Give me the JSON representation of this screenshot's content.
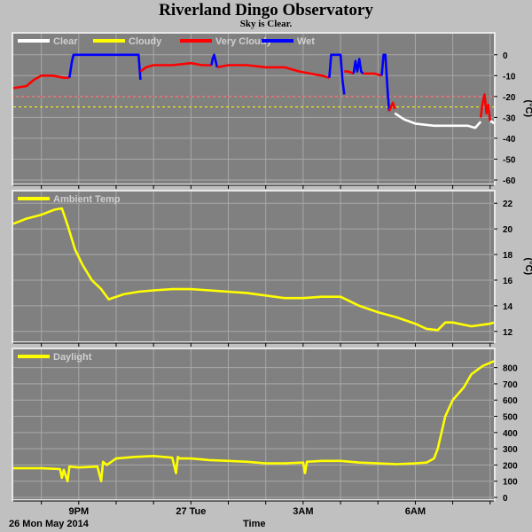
{
  "title": "Riverland Dingo Observatory",
  "subtitle": "Sky is Clear.",
  "footer": {
    "date": "26 Mon May 2014",
    "xlabel": "Time"
  },
  "colors": {
    "panel_bg": "#808080",
    "grid": "#a8a8a8",
    "axis_text": "#000000",
    "clear": "#ffffff",
    "cloudy": "#ffff00",
    "very_cloudy": "#ff0000",
    "wet": "#0000ff",
    "ambient": "#ffff00",
    "daylight": "#ffff00"
  },
  "chart_data": [
    {
      "type": "line",
      "title": "",
      "ylabel": "(°C)",
      "ylim": [
        -60,
        5
      ],
      "yticks": [
        0,
        -10,
        -20,
        -30,
        -40,
        -50,
        -60
      ],
      "x_tick_labels": [
        "9PM",
        "27 Tue",
        "3AM",
        "6AM"
      ],
      "x_tick_hours": [
        21,
        24,
        27,
        30
      ],
      "xlim_hours": [
        19.25,
        32.1
      ],
      "legend": [
        "Clear",
        "Cloudy",
        "Very Cloudy",
        "Wet"
      ],
      "thresholds": [
        {
          "value": -20,
          "color": "red"
        },
        {
          "value": -25,
          "color": "yellow"
        }
      ],
      "series": [
        {
          "name": "Very Cloudy",
          "color": "#ff0000",
          "x": [
            19.25,
            19.6,
            19.8,
            20.0,
            20.3,
            20.6,
            20.75
          ],
          "y": [
            -16,
            -15,
            -12,
            -10,
            -10,
            -11,
            -11
          ]
        },
        {
          "name": "Wet",
          "color": "#0000ff",
          "x": [
            20.75,
            20.82,
            20.86,
            21.5,
            22.0,
            22.5,
            22.6,
            22.65
          ],
          "y": [
            -11,
            -3,
            0,
            0,
            0,
            0,
            0,
            -12
          ]
        },
        {
          "name": "Very Cloudy",
          "color": "#ff0000",
          "x": [
            22.65,
            22.8,
            23.0,
            23.5,
            24.0,
            24.3,
            24.55
          ],
          "y": [
            -8,
            -6,
            -5,
            -5,
            -4,
            -5,
            -5
          ]
        },
        {
          "name": "Wet",
          "color": "#0000ff",
          "x": [
            24.55,
            24.58,
            24.62,
            24.66,
            24.7
          ],
          "y": [
            -5,
            -2,
            0,
            -3,
            -6
          ]
        },
        {
          "name": "Very Cloudy",
          "color": "#ff0000",
          "x": [
            24.7,
            25.0,
            25.5,
            26.0,
            26.5,
            26.9,
            27.2,
            27.5,
            27.7
          ],
          "y": [
            -6,
            -5,
            -5,
            -6,
            -6,
            -8,
            -9,
            -10,
            -11
          ]
        },
        {
          "name": "Wet",
          "color": "#0000ff",
          "x": [
            27.7,
            27.75,
            27.78,
            28.0,
            28.05,
            28.1
          ],
          "y": [
            -11,
            0,
            0,
            0,
            -12,
            -19
          ]
        },
        {
          "name": "Very Cloudy",
          "color": "#ff0000",
          "x": [
            28.1,
            28.2,
            28.35
          ],
          "y": [
            -8,
            -8,
            -9
          ]
        },
        {
          "name": "Wet",
          "color": "#0000ff",
          "x": [
            28.35,
            28.4,
            28.45,
            28.5,
            28.55,
            28.6
          ],
          "y": [
            -9,
            -3,
            -8,
            -2,
            -8,
            -9
          ]
        },
        {
          "name": "Very Cloudy",
          "color": "#ff0000",
          "x": [
            28.6,
            28.9,
            29.1
          ],
          "y": [
            -9,
            -9,
            -10
          ]
        },
        {
          "name": "Wet",
          "color": "#0000ff",
          "x": [
            29.1,
            29.15,
            29.2,
            29.25,
            29.3
          ],
          "y": [
            -10,
            0,
            0,
            -15,
            -27
          ]
        },
        {
          "name": "Very Cloudy",
          "color": "#ff0000",
          "x": [
            29.3,
            29.4,
            29.45
          ],
          "y": [
            -27,
            -23,
            -26
          ]
        },
        {
          "name": "Clear",
          "color": "#ffffff",
          "x": [
            29.45,
            29.7,
            30.0,
            30.5,
            31.0,
            31.4,
            31.6,
            31.75
          ],
          "y": [
            -28,
            -31,
            -33,
            -34,
            -34,
            -34,
            -35,
            -32
          ]
        },
        {
          "name": "Very Cloudy",
          "color": "#ff0000",
          "x": [
            31.75,
            31.8,
            31.85,
            31.9,
            31.95,
            32.0
          ],
          "y": [
            -30,
            -23,
            -19,
            -28,
            -24,
            -32
          ]
        },
        {
          "name": "Clear",
          "color": "#ffffff",
          "x": [
            32.0,
            32.05,
            32.1
          ],
          "y": [
            -32,
            -32,
            -33
          ]
        }
      ]
    },
    {
      "type": "line",
      "title": "",
      "ylabel": "(°C)",
      "ylim": [
        11.5,
        22.5
      ],
      "yticks": [
        22,
        20,
        18,
        16,
        14,
        12
      ],
      "x_tick_labels": [
        "9PM",
        "27 Tue",
        "3AM",
        "6AM"
      ],
      "x_tick_hours": [
        21,
        24,
        27,
        30
      ],
      "xlim_hours": [
        19.25,
        32.1
      ],
      "legend": [
        "Ambient Temp"
      ],
      "series": [
        {
          "name": "Ambient Temp",
          "color": "#ffff00",
          "x": [
            19.25,
            19.6,
            20.0,
            20.35,
            20.55,
            20.7,
            20.9,
            21.1,
            21.35,
            21.6,
            21.8,
            22.2,
            22.6,
            23.0,
            23.5,
            24.0,
            24.5,
            25.0,
            25.5,
            26.0,
            26.5,
            27.0,
            27.5,
            28.0,
            28.5,
            29.0,
            29.5,
            30.0,
            30.3,
            30.6,
            30.8,
            31.0,
            31.5,
            32.0,
            32.1
          ],
          "y": [
            20.4,
            20.8,
            21.1,
            21.5,
            21.6,
            20.3,
            18.4,
            17.2,
            16.0,
            15.3,
            14.5,
            14.9,
            15.1,
            15.2,
            15.3,
            15.3,
            15.2,
            15.1,
            15.0,
            14.8,
            14.6,
            14.6,
            14.7,
            14.7,
            14.0,
            13.5,
            13.1,
            12.6,
            12.2,
            12.1,
            12.7,
            12.7,
            12.4,
            12.6,
            12.7
          ]
        }
      ]
    },
    {
      "type": "line",
      "title": "",
      "ylabel": "",
      "ylim": [
        0,
        880
      ],
      "yticks": [
        800,
        700,
        600,
        500,
        400,
        300,
        200,
        100,
        0
      ],
      "x_tick_labels": [
        "9PM",
        "27 Tue",
        "3AM",
        "6AM"
      ],
      "x_tick_hours": [
        21,
        24,
        27,
        30
      ],
      "xlim_hours": [
        19.25,
        32.1
      ],
      "legend": [
        "Daylight"
      ],
      "series": [
        {
          "name": "Daylight",
          "color": "#ffff00",
          "x": [
            19.25,
            20.0,
            20.5,
            20.55,
            20.6,
            20.7,
            20.75,
            21.0,
            21.5,
            21.6,
            21.65,
            21.75,
            22.0,
            22.5,
            23.0,
            23.5,
            23.6,
            23.65,
            23.7,
            24.0,
            24.5,
            25.0,
            25.5,
            26.0,
            26.5,
            27.0,
            27.05,
            27.1,
            27.5,
            28.0,
            28.5,
            29.0,
            29.5,
            30.0,
            30.3,
            30.5,
            30.6,
            30.8,
            31.0,
            31.3,
            31.5,
            31.8,
            32.1
          ],
          "y": [
            180,
            180,
            175,
            120,
            170,
            100,
            190,
            185,
            190,
            100,
            220,
            200,
            240,
            250,
            255,
            245,
            150,
            250,
            240,
            240,
            230,
            225,
            220,
            210,
            210,
            215,
            150,
            220,
            225,
            225,
            215,
            210,
            205,
            210,
            215,
            240,
            300,
            500,
            600,
            680,
            760,
            810,
            840
          ]
        }
      ]
    }
  ]
}
